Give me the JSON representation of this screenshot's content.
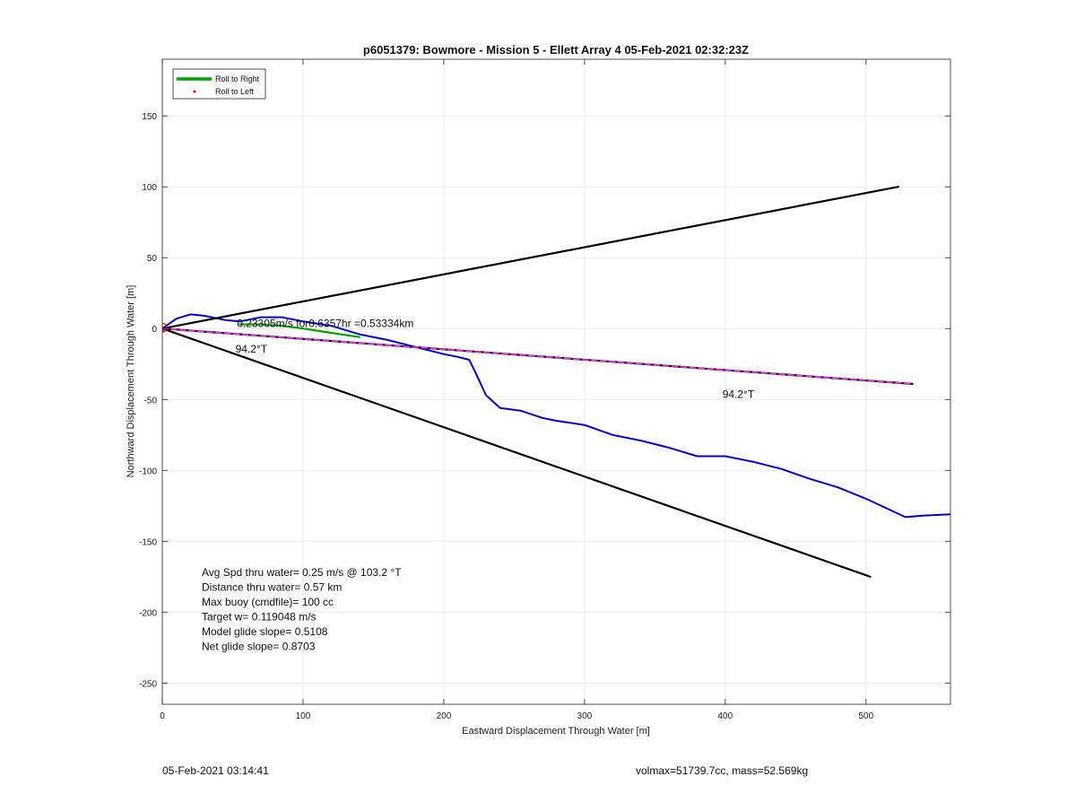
{
  "chart_data": {
    "type": "line",
    "title": "p6051379: Bowmore - Mission 5 - Ellett Array 4 05-Feb-2021 02:32:23Z",
    "xlabel": "Eastward Displacement Through Water [m]",
    "ylabel": "Northward Displacement Through Water [m]",
    "xlim": [
      0,
      560
    ],
    "ylim": [
      -265,
      190
    ],
    "xticks": [
      0,
      100,
      200,
      300,
      400,
      500
    ],
    "yticks": [
      150,
      100,
      50,
      0,
      -50,
      -100,
      -150,
      -200,
      -250
    ],
    "xtick_labels": [
      "0",
      "100",
      "200",
      "300",
      "400",
      "500"
    ],
    "ytick_labels": [
      "150",
      "100",
      "50",
      "0",
      "-50",
      "-100",
      "-150",
      "-200",
      "-250"
    ],
    "grid": true,
    "legend": {
      "location": "top-left",
      "entries": [
        {
          "label": "Roll to Right",
          "color": "#00a000",
          "style": "line"
        },
        {
          "label": "Roll to Left",
          "color": "#ff0000",
          "style": "dot"
        }
      ]
    },
    "series": [
      {
        "color": "#0000cc",
        "x": [
          0,
          10,
          20,
          30,
          45,
          55,
          70,
          85,
          100,
          120,
          140,
          160,
          180,
          200,
          210,
          218,
          222,
          230,
          240,
          255,
          270,
          280,
          300,
          320,
          340,
          360,
          380,
          400,
          420,
          440,
          460,
          480,
          500,
          515,
          528,
          540,
          560
        ],
        "y": [
          0,
          7,
          10,
          9,
          6,
          5,
          8,
          8,
          5,
          2,
          -4,
          -8,
          -13,
          -18,
          -20,
          -22,
          -30,
          -47,
          -56,
          -58,
          -63,
          -65,
          -68,
          -75,
          -79,
          -84,
          -90,
          -90,
          -94,
          -99,
          -106,
          -112,
          -120,
          -127,
          -133,
          -132,
          -131
        ]
      },
      {
        "color": "#00a000",
        "x": [
          55,
          70,
          85,
          100,
          120,
          140
        ],
        "y": [
          3,
          3,
          2,
          0,
          -3,
          -6
        ]
      },
      {
        "color": "#000000",
        "x": [
          0,
          523
        ],
        "y": [
          0,
          100
        ]
      },
      {
        "color": "#000000",
        "x": [
          0,
          503
        ],
        "y": [
          0,
          -175
        ]
      },
      {
        "color": "#000000",
        "x": [
          0,
          533
        ],
        "y": [
          0,
          -39
        ]
      },
      {
        "color": "#ff33ff",
        "style": "dashed",
        "x": [
          0,
          533
        ],
        "y": [
          0,
          -39
        ]
      }
    ],
    "start_markers": {
      "color": "#dd0000",
      "x": 0,
      "y": 0
    },
    "annotations": [
      {
        "text": "0.23305m/s for0.6357hr =0.53334km",
        "x": 53,
        "y": 1
      },
      {
        "text": "94.2°T",
        "x": 52,
        "y": -17
      },
      {
        "text": "94.2°T",
        "x": 398,
        "y": -49
      }
    ],
    "stats": [
      "Avg Spd thru water=  0.25 m/s @ 103.2 °T",
      "Distance thru water=  0.57 km",
      "Max buoy (cmdfile)= 100 cc",
      "Target w= 0.119048 m/s",
      "Model glide slope= 0.5108",
      "Net glide slope= 0.8703"
    ]
  },
  "footer": {
    "left": "05-Feb-2021 03:14:41",
    "right": "volmax=51739.7cc, mass=52.569kg"
  }
}
